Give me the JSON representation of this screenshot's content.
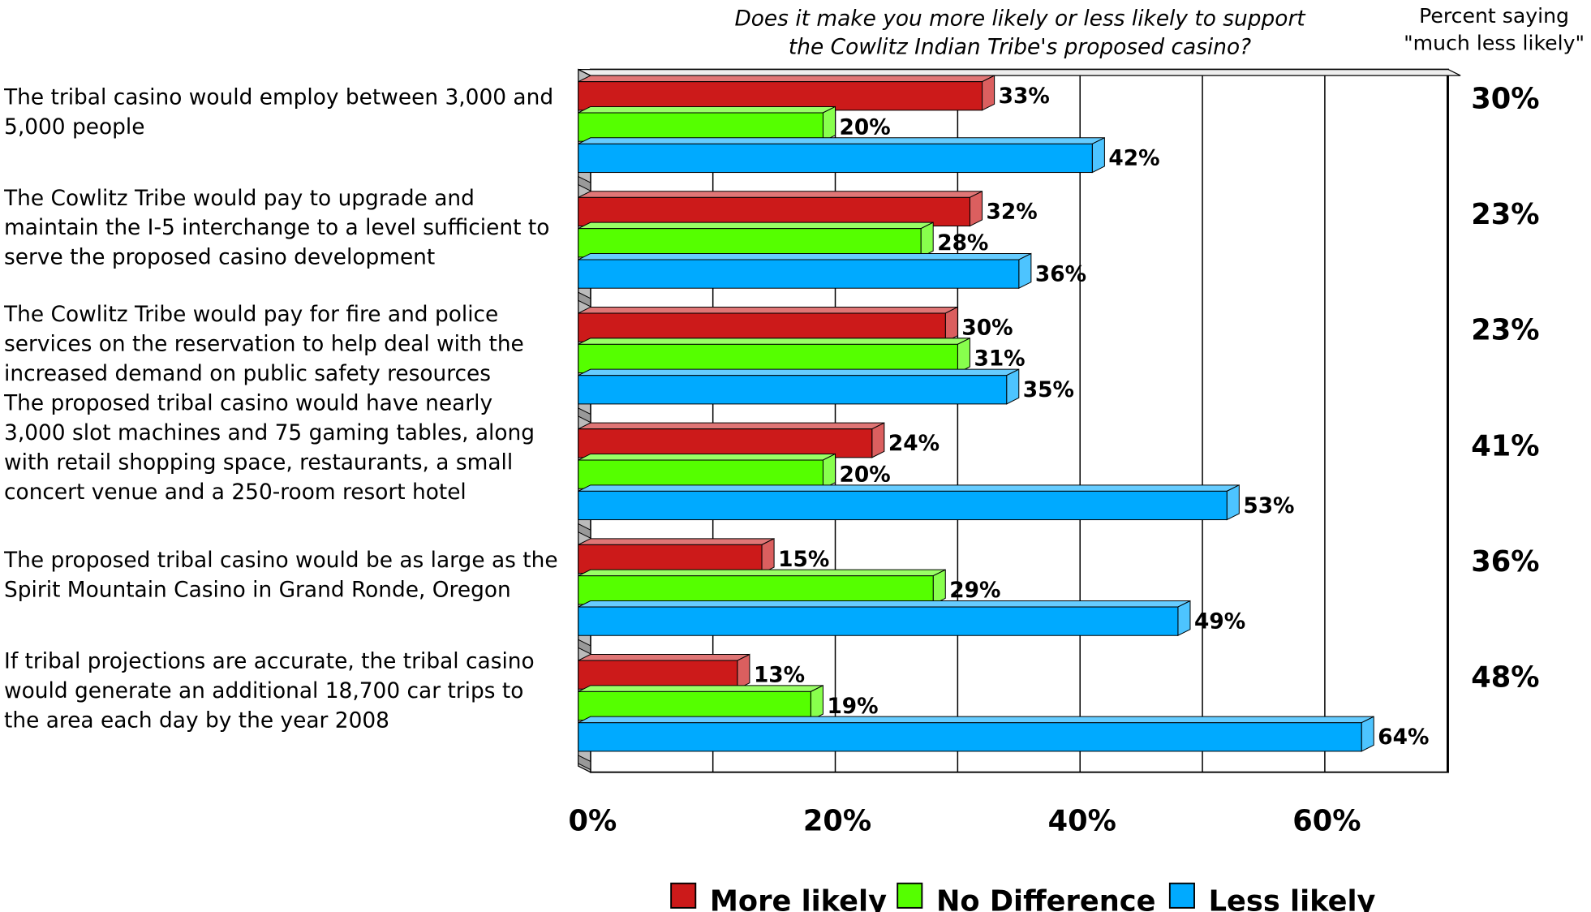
{
  "chart_data": {
    "type": "hbar3d",
    "title": "Does it make you more likely or less likely to support the Cowlitz Indian Tribe's proposed casino?",
    "categories": [
      "The tribal casino would employ between 3,000 and 5,000 people",
      "The Cowlitz Tribe would pay to upgrade and maintain the I-5 interchange to a level sufficient to serve the proposed casino development",
      "The Cowlitz Tribe would pay for fire and police services on the reservation to help deal with the increased demand on public safety resources",
      "The proposed tribal casino would have nearly 3,000 slot machines and 75 gaming tables, along with retail shopping space, restaurants, a small concert venue and a 250-room resort hotel",
      "The proposed tribal casino would be as large as the Spirit Mountain Casino in Grand Ronde, Oregon",
      "If tribal projections are accurate, the tribal casino would generate an additional 18,700 car trips to the area each day by the year 2008"
    ],
    "series": [
      {
        "name": "More likely",
        "color": "#cc1a1a",
        "values": [
          33,
          32,
          30,
          24,
          15,
          13
        ],
        "value_labels": [
          "33%",
          "32%",
          "30%",
          "24%",
          "15%",
          "13%"
        ]
      },
      {
        "name": "No Difference",
        "color": "#55ff00",
        "values": [
          20,
          28,
          31,
          20,
          29,
          19
        ],
        "value_labels": [
          "20%",
          "28%",
          "31%",
          "20%",
          "29%",
          "19%"
        ]
      },
      {
        "name": "Less likely",
        "color": "#00aaff",
        "values": [
          42,
          36,
          35,
          53,
          49,
          64
        ],
        "value_labels": [
          "42%",
          "36%",
          "35%",
          "53%",
          "49%",
          "64%"
        ]
      }
    ],
    "xlim": [
      0,
      70
    ],
    "xticks": [
      {
        "value": 0,
        "label": "0%"
      },
      {
        "value": 20,
        "label": "20%"
      },
      {
        "value": 40,
        "label": "40%"
      },
      {
        "value": 60,
        "label": "60%"
      }
    ],
    "grid_lines": [
      10,
      20,
      30,
      40,
      50,
      60,
      70
    ],
    "side_column": {
      "title": "Percent saying \"much less  likely\"",
      "values": [
        30,
        23,
        23,
        41,
        36,
        48
      ],
      "value_labels": [
        "30%",
        "23%",
        "23%",
        "41%",
        "36%",
        "48%"
      ]
    }
  }
}
